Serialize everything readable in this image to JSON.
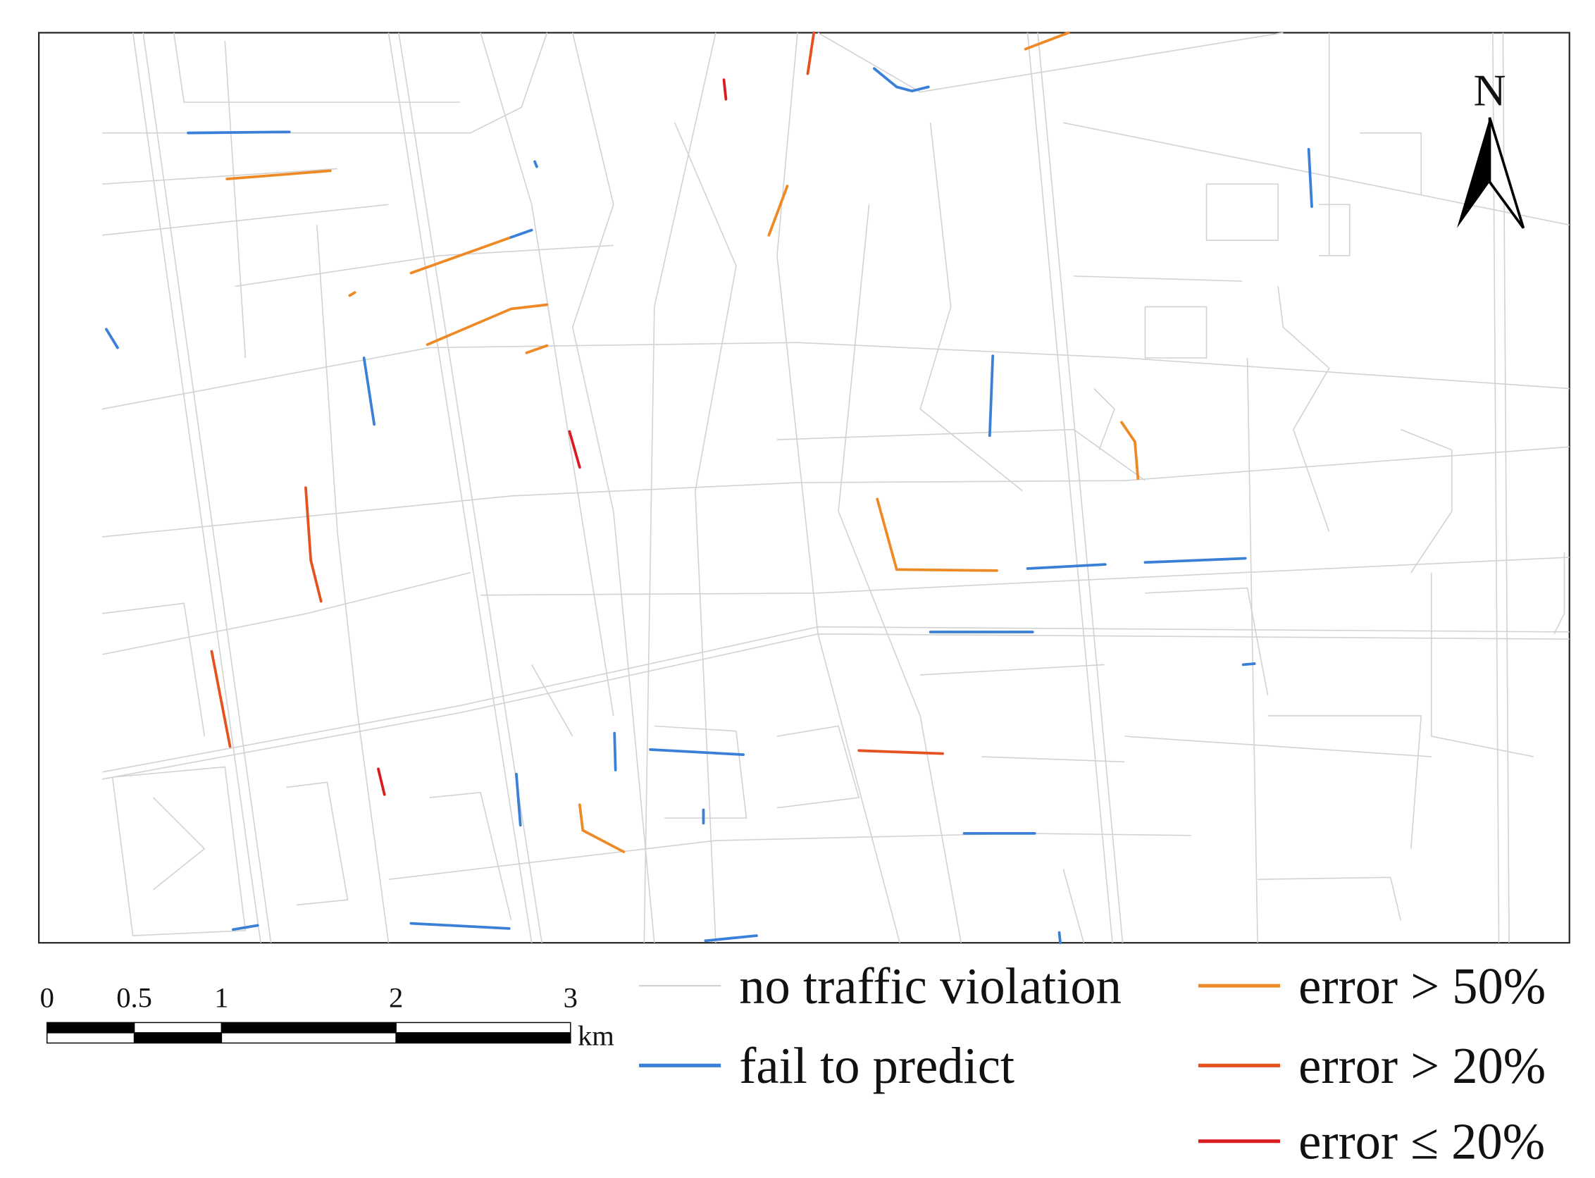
{
  "north": "N",
  "scale_bar": {
    "ticks": [
      0,
      0.5,
      1,
      2,
      3
    ],
    "unit": "km"
  },
  "legend": [
    {
      "label": "no traffic violation",
      "color": "#d2d2d2"
    },
    {
      "label": "fail to predict",
      "color": "#3a80d8"
    },
    {
      "label": "error > 50%",
      "color": "#ee8a26"
    },
    {
      "label": "error > 20%",
      "color": "#e5521f"
    },
    {
      "label": "error ≤ 20%",
      "color": "#d81c1f"
    }
  ]
}
